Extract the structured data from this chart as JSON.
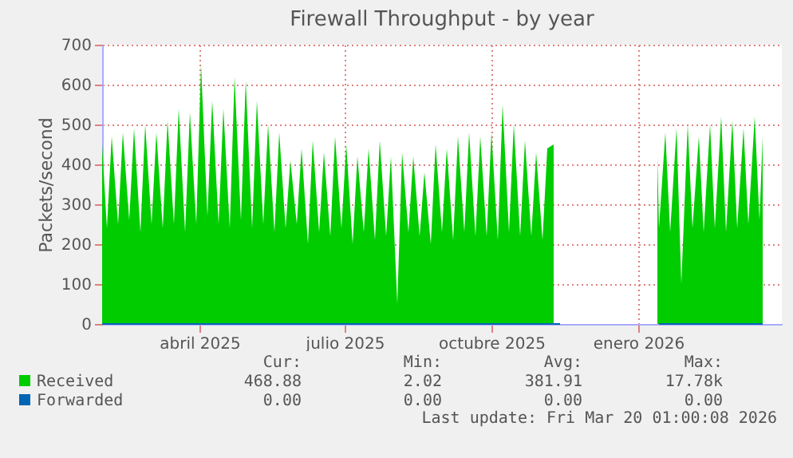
{
  "chart_data": {
    "type": "area",
    "title": "Firewall Throughput - by year",
    "ylabel": "Packets/second",
    "x": [
      "2025-01-30",
      "2025-02-02",
      "2025-02-05",
      "2025-02-09",
      "2025-02-12",
      "2025-02-16",
      "2025-02-19",
      "2025-02-23",
      "2025-02-26",
      "2025-03-02",
      "2025-03-05",
      "2025-03-09",
      "2025-03-12",
      "2025-03-16",
      "2025-03-19",
      "2025-03-23",
      "2025-03-26",
      "2025-03-30",
      "2025-04-02",
      "2025-04-06",
      "2025-04-09",
      "2025-04-13",
      "2025-04-16",
      "2025-04-20",
      "2025-04-23",
      "2025-04-27",
      "2025-04-30",
      "2025-05-04",
      "2025-05-07",
      "2025-05-11",
      "2025-05-14",
      "2025-05-18",
      "2025-05-21",
      "2025-05-25",
      "2025-05-28",
      "2025-06-01",
      "2025-06-04",
      "2025-06-08",
      "2025-06-11",
      "2025-06-15",
      "2025-06-18",
      "2025-06-22",
      "2025-06-25",
      "2025-06-29",
      "2025-07-02",
      "2025-07-06",
      "2025-07-09",
      "2025-07-13",
      "2025-07-16",
      "2025-07-20",
      "2025-07-23",
      "2025-07-27",
      "2025-07-30",
      "2025-08-03",
      "2025-08-06",
      "2025-08-10",
      "2025-08-13",
      "2025-08-17",
      "2025-08-20",
      "2025-08-24",
      "2025-08-27",
      "2025-08-31",
      "2025-09-03",
      "2025-09-07",
      "2025-09-10",
      "2025-09-14",
      "2025-09-17",
      "2025-09-21",
      "2025-09-24",
      "2025-09-28",
      "2025-10-01",
      "2025-10-05",
      "2025-10-08",
      "2025-10-12",
      "2025-10-15",
      "2025-10-19",
      "2025-10-22",
      "2025-10-26",
      "2025-10-29",
      "2025-11-02",
      "2025-11-05",
      "2025-11-09",
      "2025-11-13",
      "2025-11-14",
      "2026-01-13",
      "2026-01-14",
      "2026-01-18",
      "2026-01-21",
      "2026-01-25",
      "2026-01-28",
      "2026-02-01",
      "2026-02-04",
      "2026-02-08",
      "2026-02-11",
      "2026-02-15",
      "2026-02-18",
      "2026-02-22",
      "2026-02-25",
      "2026-03-01",
      "2026-03-04",
      "2026-03-08",
      "2026-03-11",
      "2026-03-15",
      "2026-03-18",
      "2026-03-20"
    ],
    "series": [
      {
        "name": "Received",
        "color": "#00cc00",
        "values": [
          450,
          240,
          470,
          250,
          480,
          260,
          490,
          230,
          500,
          250,
          480,
          240,
          510,
          250,
          540,
          230,
          530,
          250,
          650,
          270,
          560,
          250,
          540,
          240,
          620,
          260,
          610,
          240,
          560,
          250,
          500,
          230,
          480,
          240,
          410,
          250,
          440,
          200,
          460,
          230,
          430,
          220,
          470,
          240,
          450,
          200,
          420,
          230,
          440,
          210,
          460,
          220,
          420,
          50,
          430,
          230,
          420,
          220,
          380,
          200,
          450,
          230,
          440,
          210,
          470,
          230,
          480,
          220,
          470,
          220,
          480,
          210,
          550,
          230,
          500,
          220,
          460,
          220,
          430,
          210,
          440,
          450,
          null,
          null,
          420,
          240,
          480,
          230,
          490,
          100,
          500,
          240,
          470,
          230,
          500,
          240,
          520,
          230,
          510,
          240,
          490,
          250,
          520,
          260,
          470
        ]
      },
      {
        "name": "Forwarded",
        "color": "#0066b3",
        "type": "line",
        "x": [
          "2025-01-30",
          "2025-11-13",
          "2025-11-14",
          "2026-01-13",
          "2026-01-14",
          "2026-03-20"
        ],
        "values": [
          0,
          0,
          null,
          null,
          0,
          0
        ]
      }
    ],
    "xlim": [
      "2025-01-30",
      "2026-04-01"
    ],
    "xticks": [
      {
        "value": "2025-04-01",
        "label": "abril 2025"
      },
      {
        "value": "2025-07-01",
        "label": "julio 2025"
      },
      {
        "value": "2025-10-01",
        "label": "octubre 2025"
      },
      {
        "value": "2026-01-01",
        "label": "enero 2026"
      }
    ],
    "ylim": [
      0,
      700
    ],
    "yticks": [
      0,
      100,
      200,
      300,
      400,
      500,
      600,
      700
    ],
    "grid": true,
    "legend": "bottom",
    "annotations": [
      "Cur:",
      "Min:",
      "Avg:",
      "Max:",
      "468.88",
      "2.02",
      "381.91",
      "17.78k",
      "0.00",
      "0.00",
      "0.00",
      "0.00",
      "Last update: Fri Mar 20 01:00:08 2026"
    ]
  }
}
